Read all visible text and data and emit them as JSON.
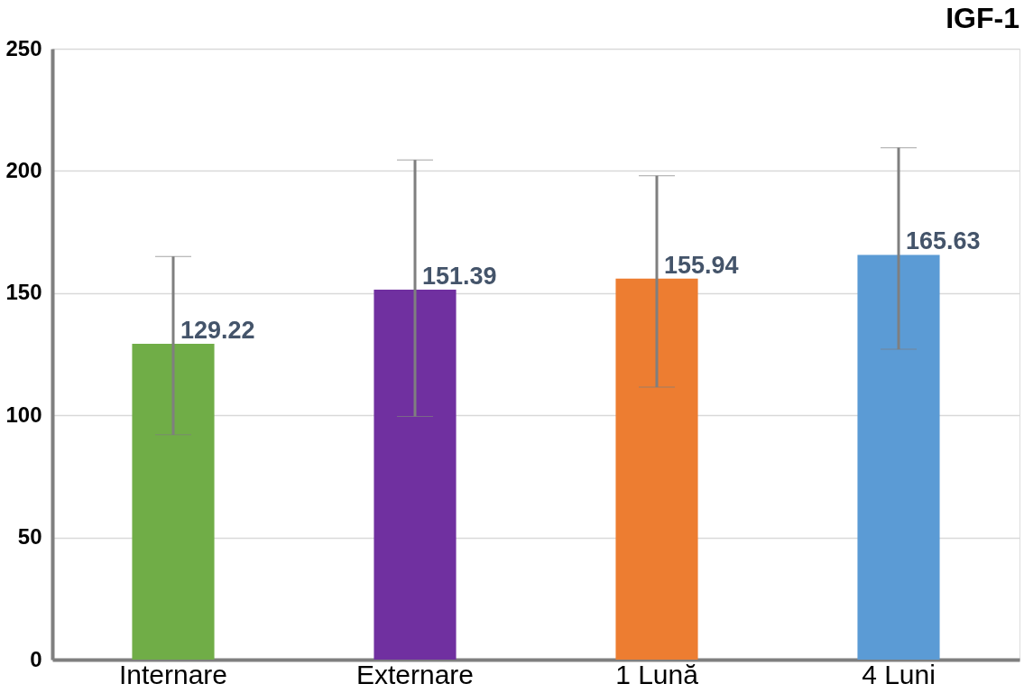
{
  "chart_data": {
    "type": "bar",
    "title": "IGF-1",
    "categories": [
      "Internare",
      "Externare",
      "1 Lună",
      "4 Luni"
    ],
    "values": [
      129.22,
      151.39,
      155.94,
      165.63
    ],
    "colors": [
      "#70ad47",
      "#7030a0",
      "#ed7d31",
      "#5b9bd5"
    ],
    "errors": [
      [
        92,
        165
      ],
      [
        99.5,
        204.5
      ],
      [
        111.5,
        198
      ],
      [
        127,
        209.5
      ]
    ],
    "ylim": [
      0,
      250
    ],
    "yticks": [
      0,
      50,
      100,
      150,
      200,
      250
    ],
    "grid": "y",
    "data_labels": true
  }
}
